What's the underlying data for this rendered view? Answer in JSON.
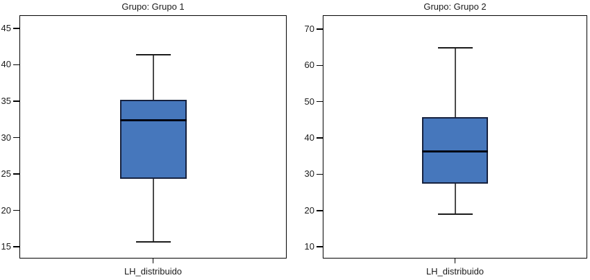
{
  "figure": {
    "background": "#ffffff"
  },
  "chart_data": [
    {
      "type": "boxplot",
      "title": "Grupo: Grupo 1",
      "xlabel": "LH_distribuido",
      "ylim": [
        13.4,
        46.8
      ],
      "yticks": [
        15,
        20,
        25,
        30,
        35,
        40,
        45
      ],
      "grid": false,
      "legend": false,
      "series": [
        {
          "name": "LH_distribuido",
          "min": 15.7,
          "q1": 24.3,
          "median": 32.4,
          "q3": 35.2,
          "max": 41.4,
          "outliers": []
        }
      ]
    },
    {
      "type": "boxplot",
      "title": "Grupo: Grupo 2",
      "xlabel": "LH_distribuido",
      "ylim": [
        6.8,
        73.8
      ],
      "yticks": [
        10,
        20,
        30,
        40,
        50,
        60,
        70
      ],
      "grid": false,
      "legend": false,
      "series": [
        {
          "name": "LH_distribuido",
          "min": 19.1,
          "q1": 27.4,
          "median": 36.2,
          "q3": 45.7,
          "max": 64.9,
          "outliers": []
        }
      ]
    }
  ],
  "colors": {
    "box_fill": "#4677BC",
    "box_border": "#16213E",
    "median": "#000514",
    "whisker": "#4a4a4a",
    "cap": "#1a1a1a",
    "axis": "#000000",
    "text": "#1a1a1a"
  }
}
